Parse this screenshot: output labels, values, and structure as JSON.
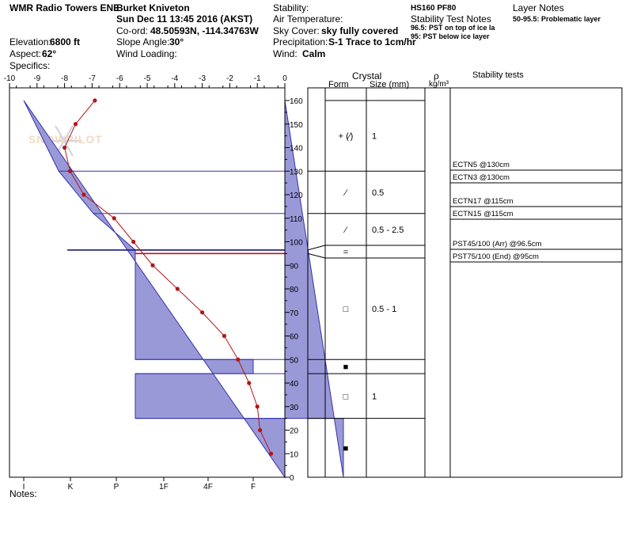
{
  "header": {
    "location": "WMR Radio Towers ENE",
    "observer": "Burket Kniveton",
    "datetime": "Sun Dec 11 13:45 2016 (AKST)",
    "coord_label": "Co-ord:",
    "coord_value": "48.50593N, -114.34763W",
    "elevation_label": "Elevation:",
    "elevation_value": "6800 ft",
    "aspect_label": "Aspect:",
    "aspect_value": "62°",
    "specifics_label": "Specifics:",
    "slope_label": "Slope Angle:",
    "slope_value": "30°",
    "wind_loading_label": "Wind Loading:",
    "stability_label": "Stability:",
    "hs_value": "HS160 PF80",
    "air_temp_label": "Air Temperature:",
    "stability_notes_label": "Stability Test Notes",
    "sky_label": "Sky Cover:",
    "sky_value": "sky fully covered",
    "note1": "96.5: PST on top of ice la",
    "note2": "95: PST below ice layer",
    "precip_label": "Precipitation:",
    "precip_value": "S-1 Trace to 1cm/hr",
    "wind_label": "Wind:",
    "wind_value": "Calm",
    "layer_notes_label": "Layer Notes",
    "layer_note": "50-95.5: Problematic layer"
  },
  "footer": {
    "notes_label": "Notes:"
  },
  "watermark": {
    "text": "SNOWPILOT",
    "icon": "snowflake-icon"
  },
  "columns": {
    "crystal": "Crystal",
    "form": "Form",
    "size": "Size (mm)",
    "rho": "ρ",
    "rho_unit": "kg/m³",
    "stability_tests": "Stability tests"
  },
  "layers": [
    {
      "top": 160,
      "bottom": 130,
      "form": "+ (⁄)",
      "size": "1"
    },
    {
      "top": 130,
      "bottom": 112,
      "form": "⁄",
      "size": "0.5"
    },
    {
      "top": 112,
      "bottom": 96.5,
      "form": "⁄",
      "size": "0.5 - 2.5"
    },
    {
      "top": 96.5,
      "bottom": 95,
      "form": "=",
      "size": ""
    },
    {
      "top": 95,
      "bottom": 50,
      "form": "□",
      "size": "0.5 - 1"
    },
    {
      "top": 50,
      "bottom": 44,
      "form": "■",
      "size": ""
    },
    {
      "top": 44,
      "bottom": 25,
      "form": "□",
      "size": "1"
    },
    {
      "top": 25,
      "bottom": 0,
      "form": "■",
      "size": ""
    }
  ],
  "tests": [
    "ECTN5 @130cm",
    "ECTN3 @130cm",
    "ECTN17 @115cm",
    "ECTN15 @115cm",
    "PST45/100 (Arr) @96.5cm",
    "PST75/100 (End) @95cm"
  ],
  "chart_data": {
    "type": "line",
    "temp_axis": {
      "ticks": [
        "-10",
        "-9",
        "-8",
        "-7",
        "-6",
        "-5",
        "-4",
        "-3",
        "-2",
        "-1",
        "0"
      ],
      "range": [
        -10,
        0
      ]
    },
    "height_axis": {
      "ticks": [
        "0",
        "10",
        "20",
        "30",
        "40",
        "50",
        "60",
        "70",
        "80",
        "90",
        "100",
        "110",
        "120",
        "130",
        "140",
        "150",
        "160"
      ],
      "range": [
        0,
        160
      ]
    },
    "hardness_axis": {
      "ticks": [
        "I",
        "K",
        "P",
        "1F",
        "4F",
        "F"
      ]
    },
    "temperature_profile": {
      "x": [
        -6.9,
        -7.6,
        -8.0,
        -7.8,
        -7.3,
        -6.2,
        -5.5,
        -4.8,
        -3.9,
        -3.0,
        -2.2,
        -1.7,
        -1.3,
        -1.0,
        -0.9,
        -0.5
      ],
      "y": [
        160,
        150,
        140,
        130,
        120,
        110,
        100,
        90,
        80,
        70,
        60,
        50,
        40,
        30,
        20,
        10
      ]
    },
    "hardness_profile": [
      {
        "top": 160,
        "bottom": 130,
        "hardness_top": 1,
        "hardness_bottom": 1.75
      },
      {
        "top": 130,
        "bottom": 112,
        "hardness_top": 1.75,
        "hardness_bottom": 2.5
      },
      {
        "top": 112,
        "bottom": 96.5,
        "hardness_top": 2.5,
        "hardness_bottom": 3.4
      },
      {
        "top": 96.5,
        "bottom": 95,
        "hardness": 3.4
      },
      {
        "top": 95,
        "bottom": 50,
        "hardness": 3.4
      },
      {
        "top": 50,
        "bottom": 44,
        "hardness": 6
      },
      {
        "top": 44,
        "bottom": 25,
        "hardness": 3.4
      },
      {
        "top": 25,
        "bottom": 0,
        "hardness": 8
      }
    ],
    "marker_lines": [
      96.5,
      95
    ],
    "colors": {
      "fill": "#9a99d8",
      "layer_line": "#3333aa",
      "temperature": "#b01818",
      "weak_line": "#1a1a7a",
      "weak_red": "#cc0000"
    }
  }
}
